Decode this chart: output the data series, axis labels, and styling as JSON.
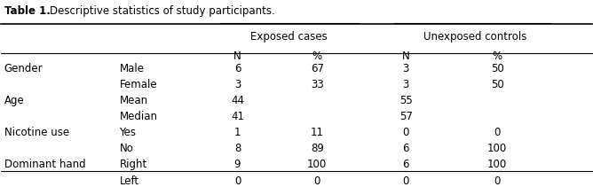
{
  "title": "Table 1.",
  "title_desc": "Descriptive statistics of study participants.",
  "col_headers_top": [
    "Exposed cases",
    "Unexposed controls"
  ],
  "col_headers_sub": [
    "N",
    "%",
    "N",
    "%"
  ],
  "rows": [
    [
      "Gender",
      "Male",
      "6",
      "67",
      "3",
      "50"
    ],
    [
      "",
      "Female",
      "3",
      "33",
      "3",
      "50"
    ],
    [
      "Age",
      "Mean",
      "44",
      "",
      "55",
      ""
    ],
    [
      "",
      "Median",
      "41",
      "",
      "57",
      ""
    ],
    [
      "Nicotine use",
      "Yes",
      "1",
      "11",
      "0",
      "0"
    ],
    [
      "",
      "No",
      "8",
      "89",
      "6",
      "100"
    ],
    [
      "Dominant hand",
      "Right",
      "9",
      "100",
      "6",
      "100"
    ],
    [
      "",
      "Left",
      "0",
      "0",
      "0",
      "0"
    ]
  ],
  "figsize": [
    6.68,
    2.11
  ],
  "dpi": 100,
  "font_size": 8.5,
  "title_font_size": 8.5
}
